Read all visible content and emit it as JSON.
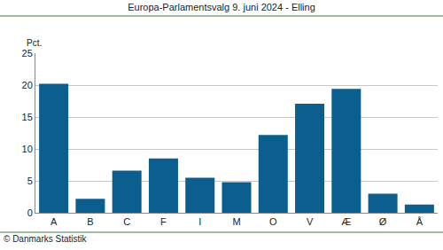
{
  "chart_data": {
    "type": "bar",
    "title": "Europa-Parlamentsvalg 9. juni 2024 - Elling",
    "ylabel": "Pct.",
    "annotations": [
      "© Danmarks Statistik"
    ],
    "categories": [
      "A",
      "B",
      "C",
      "F",
      "I",
      "M",
      "O",
      "V",
      "Æ",
      "Ø",
      "Å"
    ],
    "values": [
      20.2,
      2.2,
      6.6,
      8.5,
      5.5,
      4.8,
      12.2,
      17.1,
      19.4,
      3.0,
      1.3
    ],
    "color": "#0b5f8f",
    "ylim": [
      0,
      25
    ],
    "yticks": [
      0,
      5,
      10,
      15,
      20,
      25
    ],
    "grid": true
  }
}
